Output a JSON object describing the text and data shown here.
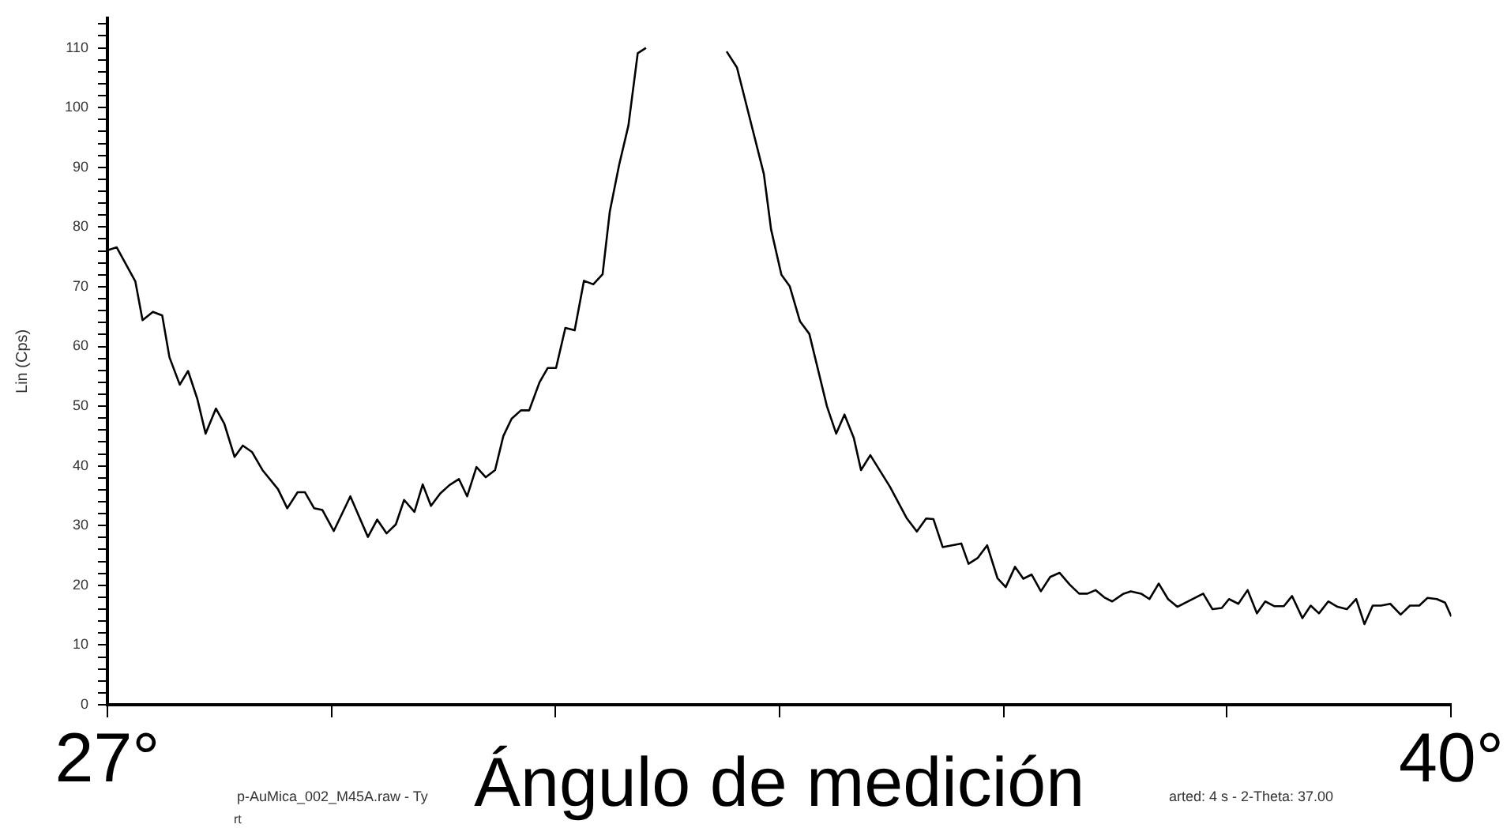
{
  "chart_data": {
    "type": "line",
    "xlabel": "Ángulo de medición",
    "ylabel": "Lin (Cps)",
    "annotations": [
      "p-AuMica_002_M45A.raw - Ty",
      "rt",
      "arted: 4 s - 2-Theta: 37.00"
    ],
    "color": "#000000",
    "marker": "none",
    "line_style": "solid",
    "grid": false,
    "legend": false,
    "xlim": [
      27,
      40
    ],
    "ylim": [
      0,
      115
    ],
    "xticks": [
      {
        "value": 27,
        "label": "27°"
      },
      {
        "value": 29.17,
        "label": null
      },
      {
        "value": 31.33,
        "label": null
      },
      {
        "value": 33.5,
        "label": null
      },
      {
        "value": 35.67,
        "label": null
      },
      {
        "value": 37.83,
        "label": null
      },
      {
        "value": 40,
        "label": "40°"
      }
    ],
    "yticks": [
      0,
      {
        "value": 2,
        "label": null
      },
      {
        "value": 4,
        "label": null
      },
      {
        "value": 6,
        "label": null
      },
      {
        "value": 8,
        "label": null
      },
      10,
      {
        "value": 12,
        "label": null
      },
      {
        "value": 14,
        "label": null
      },
      {
        "value": 16,
        "label": null
      },
      {
        "value": 18,
        "label": null
      },
      20,
      {
        "value": 22,
        "label": null
      },
      {
        "value": 24,
        "label": null
      },
      {
        "value": 26,
        "label": null
      },
      {
        "value": 28,
        "label": null
      },
      30,
      {
        "value": 32,
        "label": null
      },
      {
        "value": 34,
        "label": null
      },
      {
        "value": 36,
        "label": null
      },
      {
        "value": 38,
        "label": null
      },
      40,
      {
        "value": 42,
        "label": null
      },
      {
        "value": 44,
        "label": null
      },
      {
        "value": 46,
        "label": null
      },
      {
        "value": 48,
        "label": null
      },
      50,
      {
        "value": 52,
        "label": null
      },
      {
        "value": 54,
        "label": null
      },
      {
        "value": 56,
        "label": null
      },
      {
        "value": 58,
        "label": null
      },
      60,
      {
        "value": 62,
        "label": null
      },
      {
        "value": 64,
        "label": null
      },
      {
        "value": 66,
        "label": null
      },
      {
        "value": 68,
        "label": null
      },
      70,
      {
        "value": 72,
        "label": null
      },
      {
        "value": 74,
        "label": null
      },
      {
        "value": 76,
        "label": null
      },
      {
        "value": 78,
        "label": null
      },
      80,
      {
        "value": 82,
        "label": null
      },
      {
        "value": 84,
        "label": null
      },
      {
        "value": 86,
        "label": null
      },
      {
        "value": 88,
        "label": null
      },
      90,
      {
        "value": 92,
        "label": null
      },
      {
        "value": 94,
        "label": null
      },
      {
        "value": 96,
        "label": null
      },
      {
        "value": 98,
        "label": null
      },
      100,
      {
        "value": 102,
        "label": null
      },
      {
        "value": 104,
        "label": null
      },
      {
        "value": 106,
        "label": null
      },
      {
        "value": 108,
        "label": null
      },
      110,
      {
        "value": 112,
        "label": null
      },
      {
        "value": 114,
        "label": null
      }
    ],
    "x": [
      27.0,
      27.09,
      27.27,
      27.34,
      27.44,
      27.53,
      27.6,
      27.7,
      27.78,
      27.87,
      27.95,
      28.05,
      28.13,
      28.23,
      28.31,
      28.4,
      28.5,
      28.65,
      28.74,
      28.84,
      28.91,
      29.0,
      29.08,
      29.19,
      29.35,
      29.52,
      29.61,
      29.7,
      29.79,
      29.87,
      29.97,
      30.05,
      30.13,
      30.22,
      30.31,
      30.4,
      30.48,
      30.57,
      30.66,
      30.75,
      30.83,
      30.91,
      31.0,
      31.08,
      31.18,
      31.26,
      31.34,
      31.43,
      31.52,
      31.61,
      31.7,
      31.79,
      31.86,
      31.95,
      32.04,
      32.13,
      32.21,
      32.32,
      32.6,
      32.93,
      32.99,
      33.09,
      33.35,
      33.42,
      33.52,
      33.6,
      33.7,
      33.79,
      33.96,
      34.05,
      34.13,
      34.22,
      34.29,
      34.38,
      34.57,
      34.73,
      34.83,
      34.92,
      34.99,
      35.08,
      35.26,
      35.33,
      35.42,
      35.51,
      35.61,
      35.69,
      35.78,
      35.86,
      35.94,
      36.03,
      36.12,
      36.21,
      36.31,
      36.4,
      36.48,
      36.56,
      36.65,
      36.72,
      36.83,
      36.9,
      37.0,
      37.08,
      37.17,
      37.26,
      37.35,
      37.6,
      37.69,
      37.78,
      37.85,
      37.94,
      38.03,
      38.12,
      38.2,
      38.29,
      38.38,
      38.46,
      38.56,
      38.64,
      38.72,
      38.81,
      38.9,
      38.99,
      39.08,
      39.16,
      39.24,
      39.32,
      39.41,
      39.51,
      39.6,
      39.69,
      39.77,
      39.86,
      39.94,
      40.0
    ],
    "values": [
      76.1,
      76.6,
      70.9,
      64.4,
      65.8,
      65.2,
      58.2,
      53.6,
      55.9,
      51.2,
      45.4,
      49.6,
      47.1,
      41.5,
      43.4,
      42.3,
      39.3,
      36.1,
      32.9,
      35.6,
      35.6,
      32.9,
      32.6,
      29.1,
      34.9,
      28.1,
      31.0,
      28.7,
      30.2,
      34.3,
      32.3,
      36.9,
      33.3,
      35.4,
      36.8,
      37.8,
      34.9,
      39.8,
      38.1,
      39.3,
      45.0,
      47.9,
      49.3,
      49.3,
      54.0,
      56.4,
      56.4,
      63.1,
      62.7,
      71.0,
      70.4,
      72.1,
      82.6,
      90.4,
      97.0,
      109.1,
      110.0,
      null,
      null,
      null,
      109.4,
      106.7,
      88.9,
      79.6,
      72.0,
      70.1,
      64.2,
      62.1,
      50.0,
      45.4,
      48.6,
      44.7,
      39.3,
      41.8,
      36.5,
      31.3,
      29.0,
      31.2,
      31.1,
      26.4,
      27.0,
      23.6,
      24.6,
      26.7,
      21.2,
      19.7,
      23.1,
      21.1,
      21.8,
      19.0,
      21.4,
      22.1,
      20.1,
      18.6,
      18.6,
      19.2,
      17.9,
      17.3,
      18.6,
      19.0,
      18.6,
      17.7,
      20.3,
      17.7,
      16.4,
      18.6,
      16.0,
      16.2,
      17.7,
      16.9,
      19.2,
      15.3,
      17.3,
      16.5,
      16.5,
      18.2,
      14.5,
      16.6,
      15.3,
      17.3,
      16.4,
      16.0,
      17.7,
      13.5,
      16.6,
      16.6,
      16.9,
      15.1,
      16.6,
      16.6,
      17.9,
      17.7,
      17.1,
      14.8
    ]
  }
}
